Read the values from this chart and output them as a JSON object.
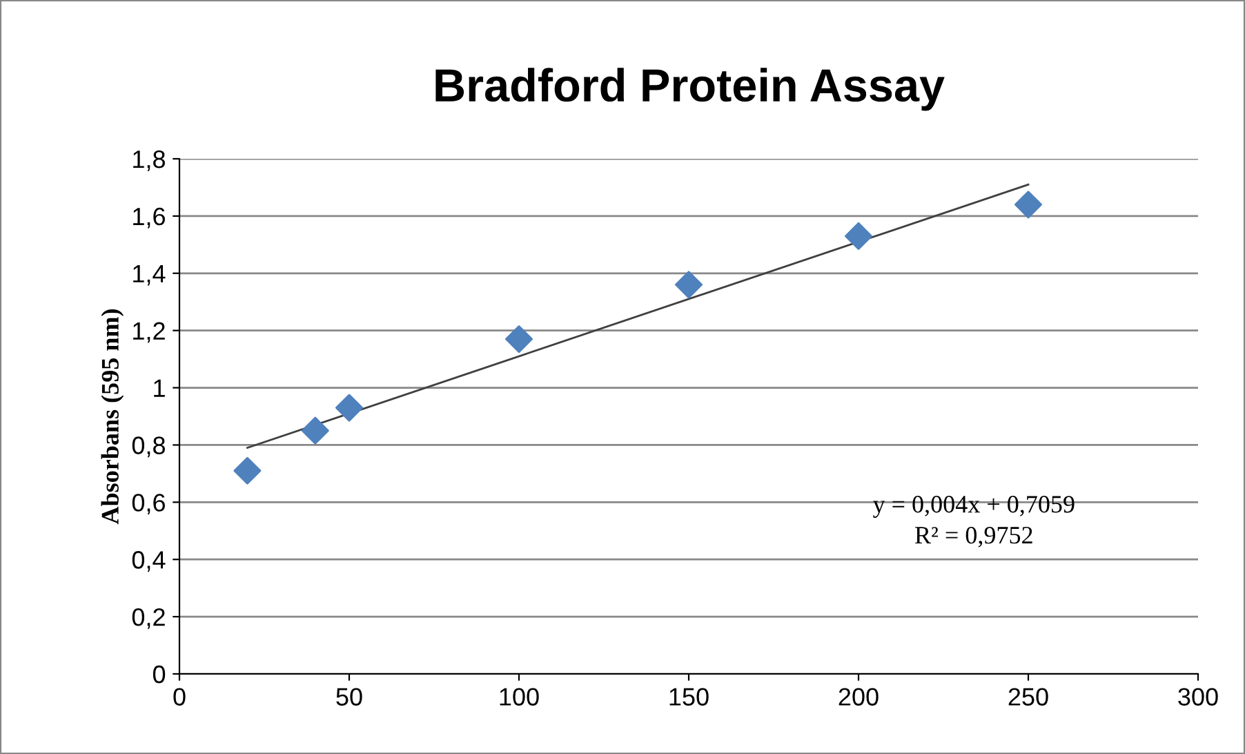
{
  "chart_data": {
    "type": "scatter",
    "title": "Bradford Protein Assay",
    "ylabel": "Absorbans (595 nm)",
    "series": [
      {
        "color": "#4f81bd",
        "marker": "diamond",
        "x": [
          20,
          40,
          50,
          100,
          150,
          200,
          250
        ],
        "values": [
          0.71,
          0.85,
          0.93,
          1.17,
          1.36,
          1.53,
          1.64
        ]
      },
      {
        "type": "line",
        "color": "#404040",
        "marker": "none",
        "line_style": "solid",
        "x": [
          20,
          250
        ],
        "values": [
          0.79,
          1.71
        ]
      }
    ],
    "annotations": [
      "y = 0,004x + 0,7059",
      "R² = 0,9752"
    ],
    "xlim": [
      0,
      300
    ],
    "xticks": [
      0,
      50,
      100,
      150,
      200,
      250,
      300
    ],
    "ylim": [
      0,
      1.8
    ],
    "yticks": [
      0,
      {
        "value": 0.2,
        "label": "0,2"
      },
      {
        "value": 0.4,
        "label": "0,4"
      },
      {
        "value": 0.6,
        "label": "0,6"
      },
      {
        "value": 0.8,
        "label": "0,8"
      },
      1,
      {
        "value": 1.2,
        "label": "1,2"
      },
      {
        "value": 1.4,
        "label": "1,4"
      },
      {
        "value": 1.6,
        "label": "1,6"
      },
      {
        "value": 1.8,
        "label": "1,8"
      }
    ],
    "grid": "y"
  }
}
